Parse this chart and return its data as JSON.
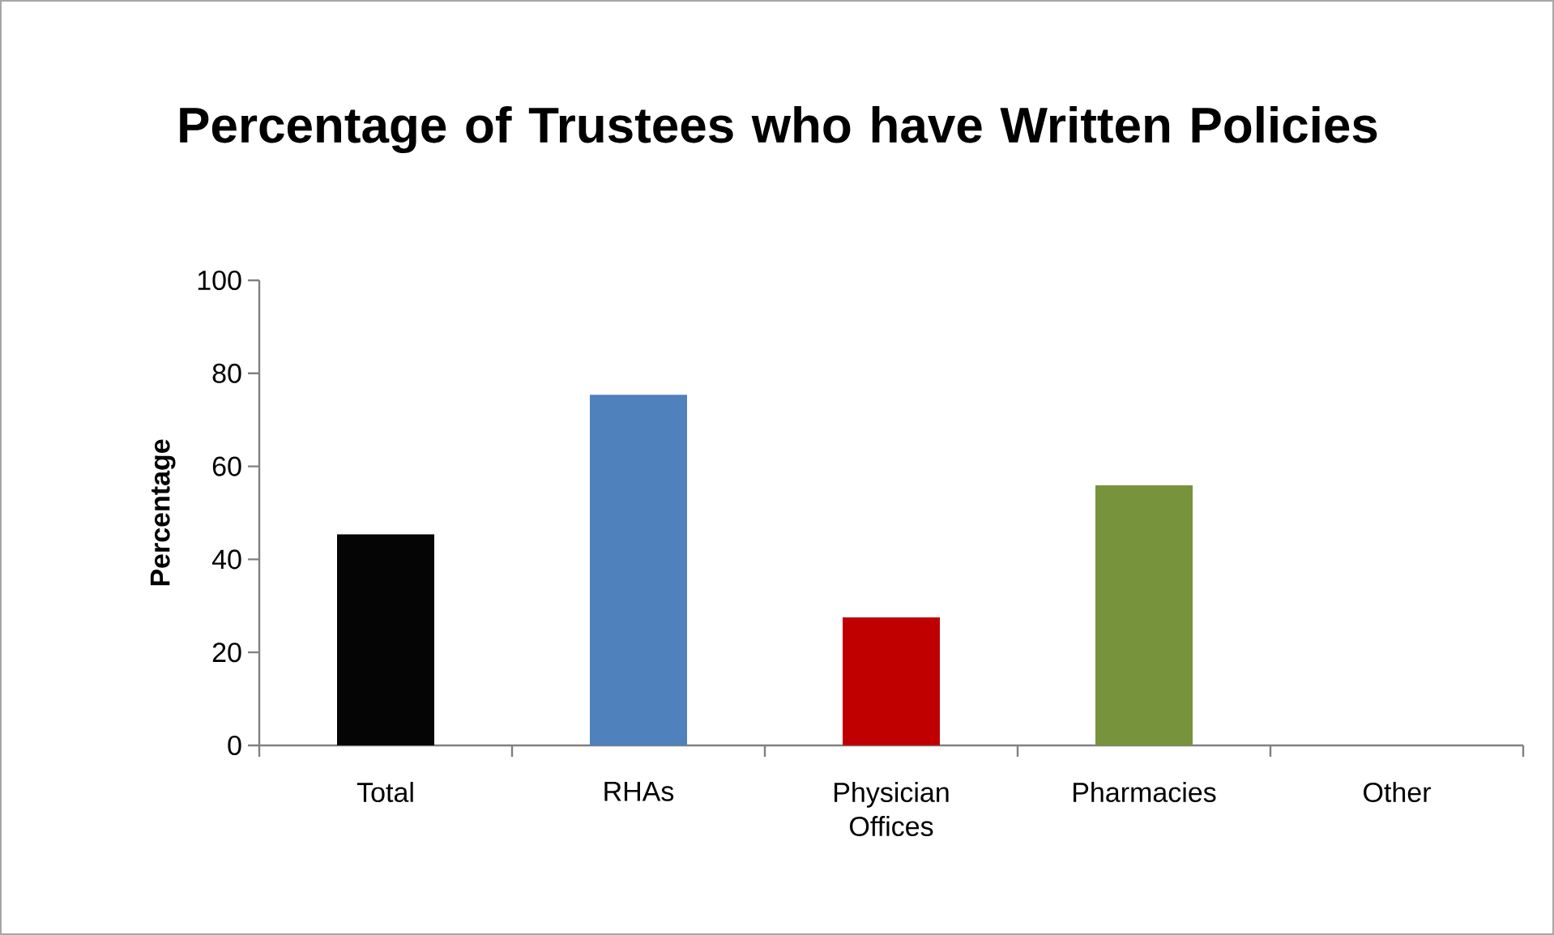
{
  "chart_data": {
    "type": "bar",
    "title": "Percentage of Trustees who have Written Policies",
    "ylabel": "Percentage",
    "categories": [
      "Total",
      "RHAs",
      "Physician Offices",
      "Pharmacies",
      "Other"
    ],
    "values": [
      45.4,
      75.4,
      27.5,
      55.9,
      0
    ],
    "colors": [
      "#050505",
      "#4f81bd",
      "#c00000",
      "#77933c",
      "#ffffff"
    ],
    "ylim": [
      0,
      100
    ],
    "yticks": [
      0,
      20,
      40,
      60,
      80,
      100
    ],
    "grid": false
  }
}
